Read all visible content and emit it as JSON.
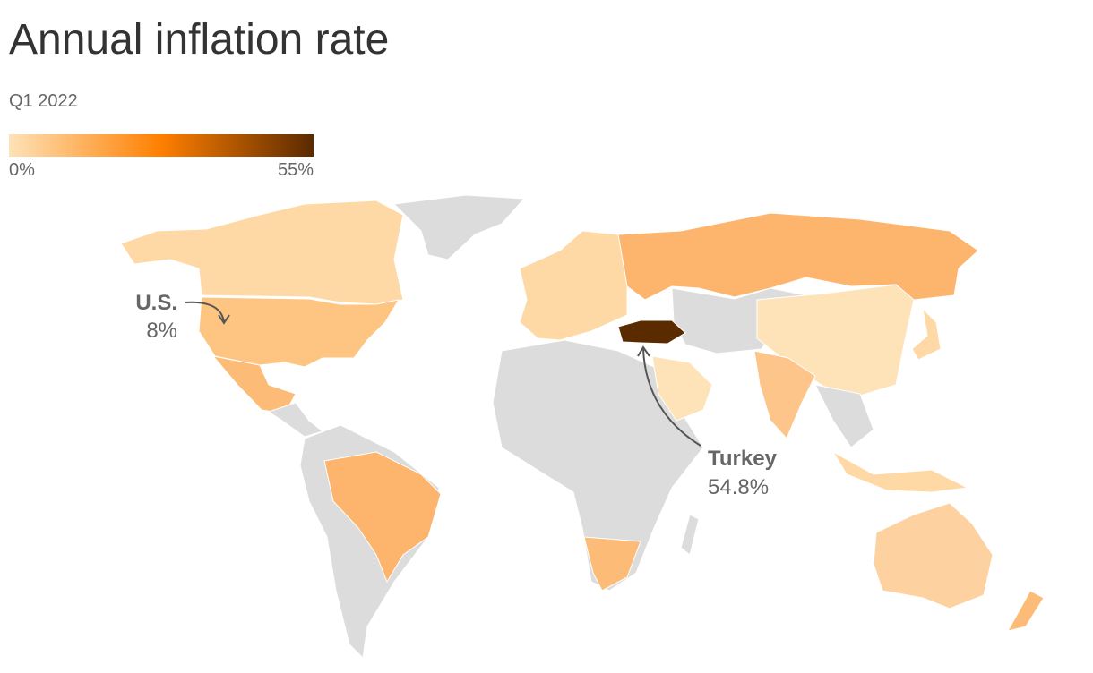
{
  "title": "Annual inflation rate",
  "subtitle": "Q1 2022",
  "legend": {
    "min": {
      "value": 0,
      "label": "0%"
    },
    "max": {
      "value": 55,
      "label": "55%"
    },
    "colors": [
      "#fee2b8",
      "#ff7f00",
      "#5a2a00"
    ]
  },
  "annotations": [
    {
      "name": "U.S.",
      "value": 8,
      "value_label": "8%"
    },
    {
      "name": "Turkey",
      "value": 54.8,
      "value_label": "54.8%"
    }
  ]
}
